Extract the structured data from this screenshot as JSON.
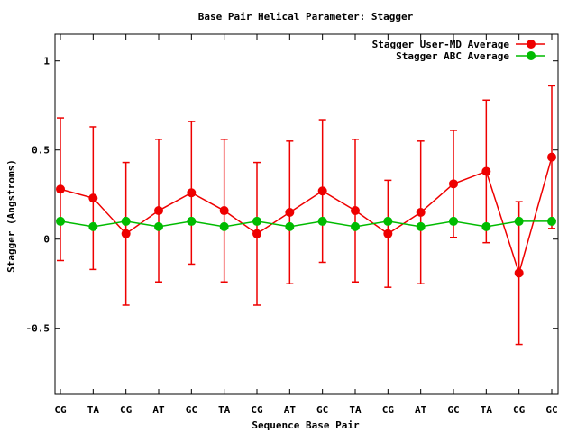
{
  "chart_data": {
    "type": "line",
    "title": "Base Pair Helical Parameter: Stagger",
    "xlabel": "Sequence Base Pair",
    "ylabel": "Stagger (Angstroms)",
    "categories": [
      "CG",
      "TA",
      "CG",
      "AT",
      "GC",
      "TA",
      "CG",
      "AT",
      "GC",
      "TA",
      "CG",
      "AT",
      "GC",
      "TA",
      "CG",
      "GC"
    ],
    "ylim": [
      -0.87,
      1.15
    ],
    "yticks": [
      -0.5,
      0,
      0.5,
      1
    ],
    "ytick_labels": [
      "-0.5",
      "0",
      "0.5",
      "1"
    ],
    "grid": false,
    "legend_position": "top-right",
    "series": [
      {
        "name": "Stagger User-MD Average",
        "color": "#ee0000",
        "values": [
          0.28,
          0.23,
          0.03,
          0.16,
          0.26,
          0.16,
          0.03,
          0.15,
          0.27,
          0.16,
          0.03,
          0.15,
          0.31,
          0.38,
          -0.19,
          0.46
        ],
        "error_low": [
          -0.12,
          -0.17,
          -0.37,
          -0.24,
          -0.14,
          -0.24,
          -0.37,
          -0.25,
          -0.13,
          -0.24,
          -0.27,
          -0.25,
          0.01,
          -0.02,
          -0.59,
          0.06
        ],
        "error_high": [
          0.68,
          0.63,
          0.43,
          0.56,
          0.66,
          0.56,
          0.43,
          0.55,
          0.67,
          0.56,
          0.33,
          0.55,
          0.61,
          0.78,
          0.21,
          0.86
        ]
      },
      {
        "name": "Stagger ABC Average",
        "color": "#00bb00",
        "values": [
          0.1,
          0.07,
          0.1,
          0.07,
          0.1,
          0.07,
          0.1,
          0.07,
          0.1,
          0.07,
          0.1,
          0.07,
          0.1,
          0.07,
          0.1,
          0.1
        ]
      }
    ]
  }
}
